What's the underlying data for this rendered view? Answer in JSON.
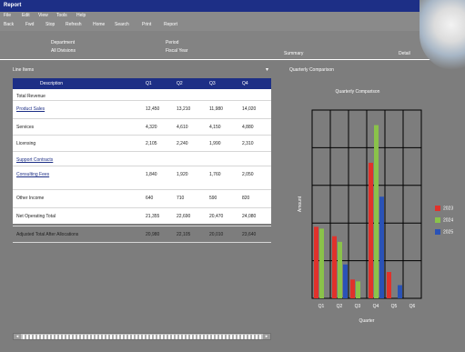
{
  "window": {
    "title": "Report"
  },
  "menu": {
    "items": [
      "File",
      "Edit",
      "View",
      "Tools",
      "Help"
    ]
  },
  "toolbar": {
    "buttons": [
      "Back",
      "Fwd",
      "Stop",
      "Refresh",
      "Home",
      "Search",
      "Print",
      "Report"
    ]
  },
  "header": {
    "col1_top": "Department",
    "col1_bottom": "All Divisions",
    "col2_top": "Period",
    "col2_bottom": "Fiscal Year",
    "col3": "Summary",
    "col4": "Detail"
  },
  "left": {
    "section_label": "Line Items"
  },
  "right": {
    "section_title": "Quarterly Comparison"
  },
  "table": {
    "headers": [
      "Description",
      "Q1",
      "Q2",
      "Q3",
      "Q4"
    ],
    "rows": [
      {
        "label": "Total Revenue",
        "link": false,
        "vals": [
          "",
          "",
          "",
          ""
        ]
      },
      {
        "label": "Product Sales",
        "link": true,
        "vals": [
          "12,450",
          "13,210",
          "11,980",
          "14,020"
        ]
      },
      {
        "label": "Services",
        "link": false,
        "vals": [
          "4,320",
          "4,610",
          "4,150",
          "4,880"
        ]
      },
      {
        "label": "Licensing",
        "link": false,
        "vals": [
          "2,105",
          "2,240",
          "1,990",
          "2,310"
        ]
      },
      {
        "label": "Support Contracts",
        "link": true,
        "vals": [
          "",
          "",
          "",
          ""
        ]
      },
      {
        "label": "Consulting Fees",
        "link": true,
        "vals": [
          "1,840",
          "1,920",
          "1,760",
          "2,050"
        ]
      },
      {
        "label": "Other Income",
        "link": false,
        "vals": [
          "640",
          "710",
          "590",
          "820"
        ]
      },
      {
        "label": "Net Operating Total",
        "link": false,
        "vals": [
          "21,355",
          "22,690",
          "20,470",
          "24,080"
        ]
      },
      {
        "label": "Adjusted Total After Allocations",
        "link": false,
        "vals": [
          "20,980",
          "22,105",
          "20,010",
          "23,640"
        ]
      }
    ]
  },
  "chart_data": {
    "type": "bar",
    "title": "Quarterly Comparison",
    "xlabel": "Quarter",
    "ylabel": "Amount",
    "categories": [
      "Q1",
      "Q2",
      "Q3",
      "Q4",
      "Q5",
      "Q6"
    ],
    "ylim": [
      0,
      100
    ],
    "grid": true,
    "legend_position": "right",
    "series": [
      {
        "name": "2023",
        "color": "#e0322b",
        "values": [
          38,
          33,
          10,
          72,
          14,
          0
        ]
      },
      {
        "name": "2024",
        "color": "#8ac24a",
        "values": [
          37,
          30,
          9,
          92,
          0,
          0
        ]
      },
      {
        "name": "2025",
        "color": "#2a52b6",
        "values": [
          0,
          18,
          0,
          54,
          7,
          0
        ]
      }
    ]
  }
}
